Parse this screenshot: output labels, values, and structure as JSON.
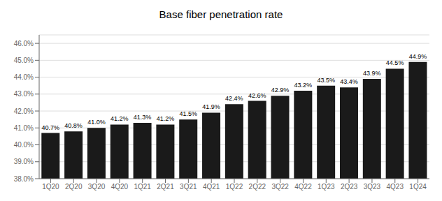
{
  "chart_data": {
    "type": "bar",
    "title": "Base fiber penetration rate",
    "categories": [
      "1Q20",
      "2Q20",
      "3Q20",
      "4Q20",
      "1Q21",
      "2Q21",
      "3Q21",
      "4Q21",
      "1Q22",
      "2Q22",
      "3Q22",
      "4Q22",
      "1Q23",
      "2Q23",
      "3Q23",
      "4Q23",
      "1Q24"
    ],
    "values": [
      40.7,
      40.8,
      41.0,
      41.2,
      41.3,
      41.2,
      41.5,
      41.9,
      42.4,
      42.6,
      42.9,
      43.2,
      43.5,
      43.4,
      43.9,
      44.5,
      44.9
    ],
    "value_labels": [
      "40.7%",
      "40.8%",
      "41.0%",
      "41.2%",
      "41.3%",
      "41.2%",
      "41.5%",
      "41.9%",
      "42.4%",
      "42.6%",
      "42.9%",
      "43.2%",
      "43.5%",
      "43.4%",
      "43.9%",
      "44.5%",
      "44.9%"
    ],
    "data_labels": true,
    "color": "#1a1a1a",
    "ylim": [
      38.0,
      46.5
    ],
    "yticks": [
      {
        "value": 38.0,
        "label": "38.0%"
      },
      {
        "value": 39.0,
        "label": "39.0%"
      },
      {
        "value": 40.0,
        "label": "40.0%"
      },
      {
        "value": 41.0,
        "label": "41.0%"
      },
      {
        "value": 42.0,
        "label": "42.0%"
      },
      {
        "value": 43.0,
        "label": "43.0%"
      },
      {
        "value": 44.0,
        "label": "44.0%"
      },
      {
        "value": 45.0,
        "label": "45.0%"
      },
      {
        "value": 46.0,
        "label": "46.0%"
      }
    ],
    "grid": true
  }
}
